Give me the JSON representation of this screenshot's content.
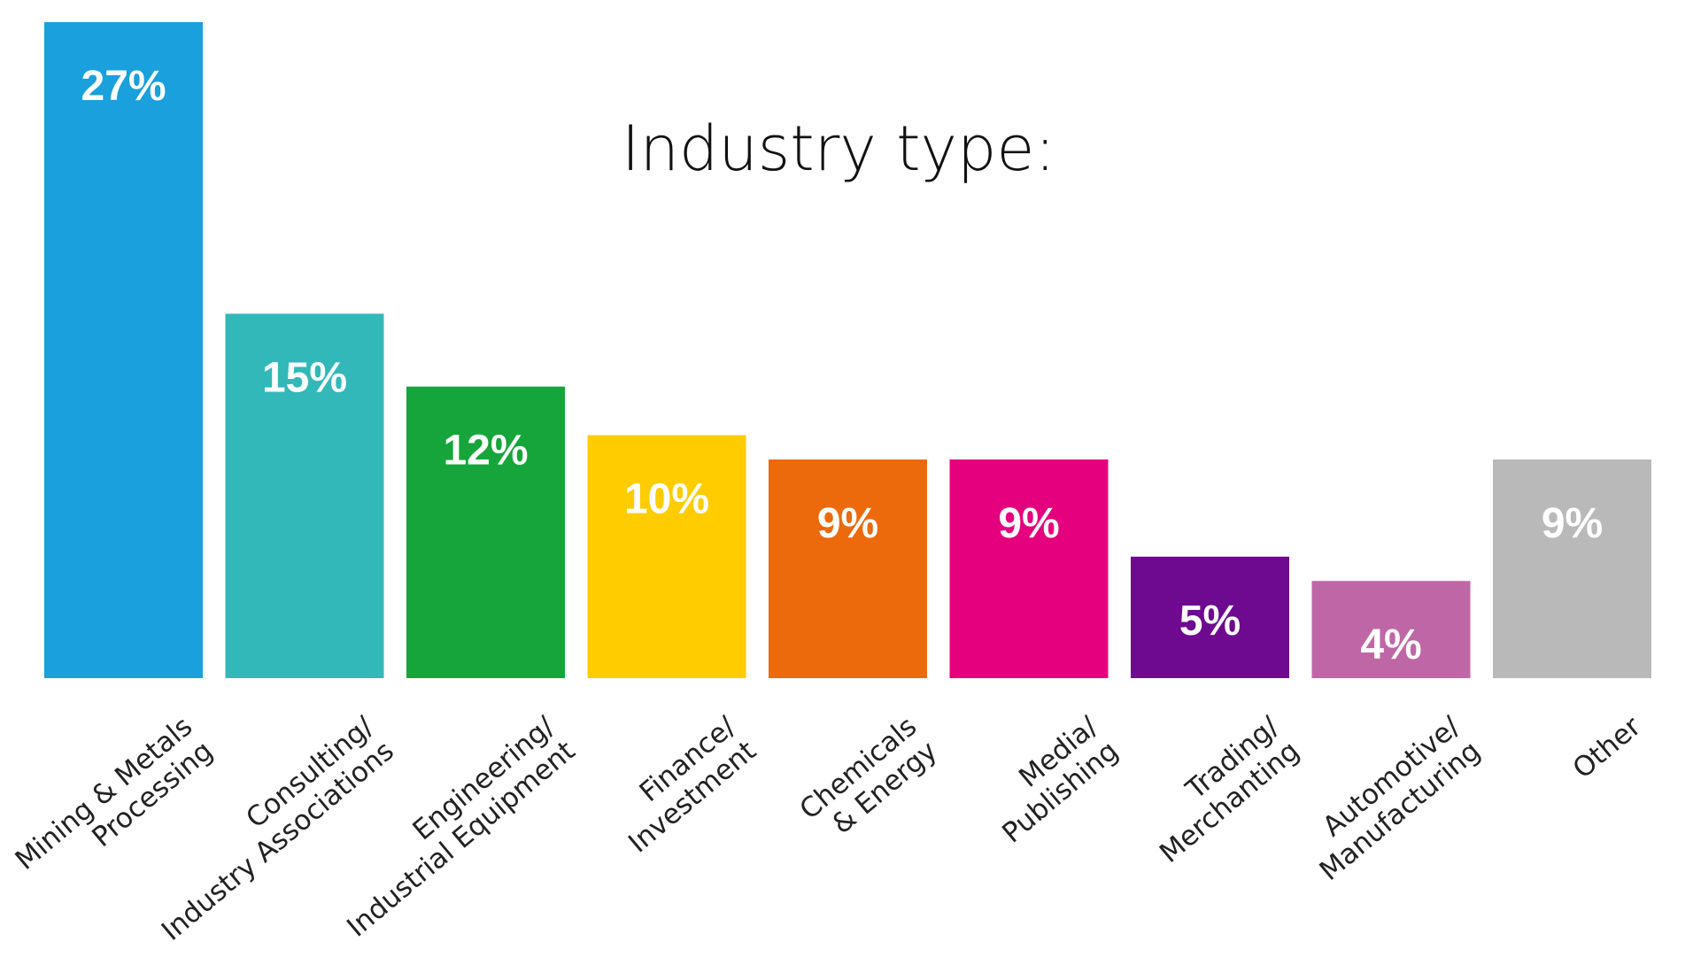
{
  "chart_data": {
    "type": "bar",
    "title": "Industry type:",
    "categories": [
      [
        "Mining & Metals",
        "Processing"
      ],
      [
        "Consulting/",
        "Industry Associations"
      ],
      [
        "Engineering/",
        "Industrial Equipment"
      ],
      [
        "Finance/",
        "Investment"
      ],
      [
        "Chemicals",
        "& Energy"
      ],
      [
        "Media/",
        "Publishing"
      ],
      [
        "Trading/",
        "Merchanting"
      ],
      [
        "Automotive/",
        "Manufacturing"
      ],
      [
        "Other"
      ]
    ],
    "values": [
      27,
      15,
      12,
      10,
      9,
      9,
      5,
      4,
      9
    ],
    "value_labels": [
      "27%",
      "15%",
      "12%",
      "10%",
      "9%",
      "9%",
      "5%",
      "4%",
      "9%"
    ],
    "colors": [
      "#1aa0dc",
      "#33b8b9",
      "#16a53b",
      "#ffcc00",
      "#ec6a0c",
      "#e5007e",
      "#6d0a8f",
      "#bf67a6",
      "#b9b9b9"
    ],
    "xlabel": "",
    "ylabel": "",
    "ylim": [
      0,
      27
    ],
    "grid": false,
    "legend": "none"
  }
}
